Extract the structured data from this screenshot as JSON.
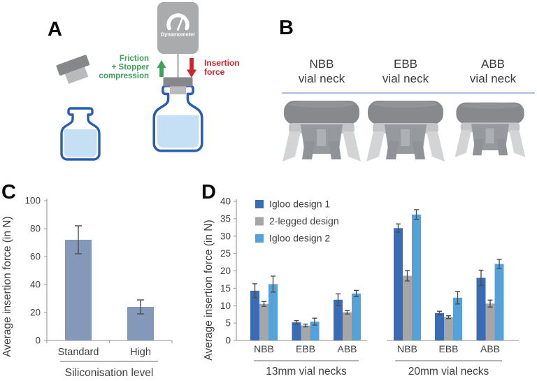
{
  "figure": {
    "panels": {
      "a": {
        "label": "A",
        "dynamometer_label": "Dynamometer",
        "friction_lines": [
          "Friction",
          "+ Stopper",
          "compression"
        ],
        "insertion_lines": [
          "Insertion",
          "force"
        ],
        "colors": {
          "green": "#3fa25a",
          "red": "#d0242b",
          "vial_blue": "#2a5db0",
          "liquid": "#c5dff4",
          "device_grey": "#a9abad",
          "stopper_dark": "#85878a",
          "stopper_light": "#b9babc"
        }
      },
      "b": {
        "label": "B",
        "columns": [
          {
            "name": "NBB",
            "subtitle": "vial neck"
          },
          {
            "name": "EBB",
            "subtitle": "vial neck"
          },
          {
            "name": "ABB",
            "subtitle": "vial neck"
          }
        ],
        "divider_color": "#8fa9d0"
      },
      "c": {
        "label": "C"
      },
      "d": {
        "label": "D"
      }
    }
  },
  "chart_data": [
    {
      "id": "panel-c",
      "type": "bar",
      "title": "",
      "ylabel": "Average insertion force (in N)",
      "xlabel": "Siliconisation level",
      "ylim": [
        0,
        100
      ],
      "ytick_step": 20,
      "bar_color": "#8498ba",
      "categories": [
        "Standard",
        "High"
      ],
      "values": [
        72,
        24
      ],
      "errors": [
        10,
        5
      ]
    },
    {
      "id": "panel-d",
      "type": "grouped-bar",
      "title": "",
      "ylabel": "Average insertion force (in N)",
      "ylim": [
        0,
        40
      ],
      "ytick_step": 5,
      "legend_position": "top-left",
      "series": [
        {
          "name": "Igloo design 1",
          "color": "#3a6bb5"
        },
        {
          "name": "2-legged design",
          "color": "#a6a6a6"
        },
        {
          "name": "Igloo design 2",
          "color": "#55a1d9"
        }
      ],
      "groups": [
        {
          "label": "13mm vial necks",
          "categories": [
            "NBB",
            "EBB",
            "ABB"
          ],
          "values": [
            [
              14.3,
              10.5,
              16.2
            ],
            [
              5.2,
              4.3,
              5.4
            ],
            [
              11.7,
              8.1,
              13.5
            ]
          ],
          "errors": [
            [
              2.0,
              0.7,
              2.3
            ],
            [
              0.5,
              0.4,
              1.0
            ],
            [
              1.7,
              0.5,
              0.9
            ]
          ]
        },
        {
          "label": "20mm vial necks",
          "categories": [
            "NBB",
            "EBB",
            "ABB"
          ],
          "values": [
            [
              32.3,
              18.6,
              36.2
            ],
            [
              7.9,
              6.7,
              12.3
            ],
            [
              18.0,
              10.6,
              22.0
            ]
          ],
          "errors": [
            [
              1.2,
              1.5,
              1.4
            ],
            [
              0.5,
              0.4,
              1.8
            ],
            [
              2.2,
              1.0,
              1.3
            ]
          ]
        }
      ]
    }
  ]
}
